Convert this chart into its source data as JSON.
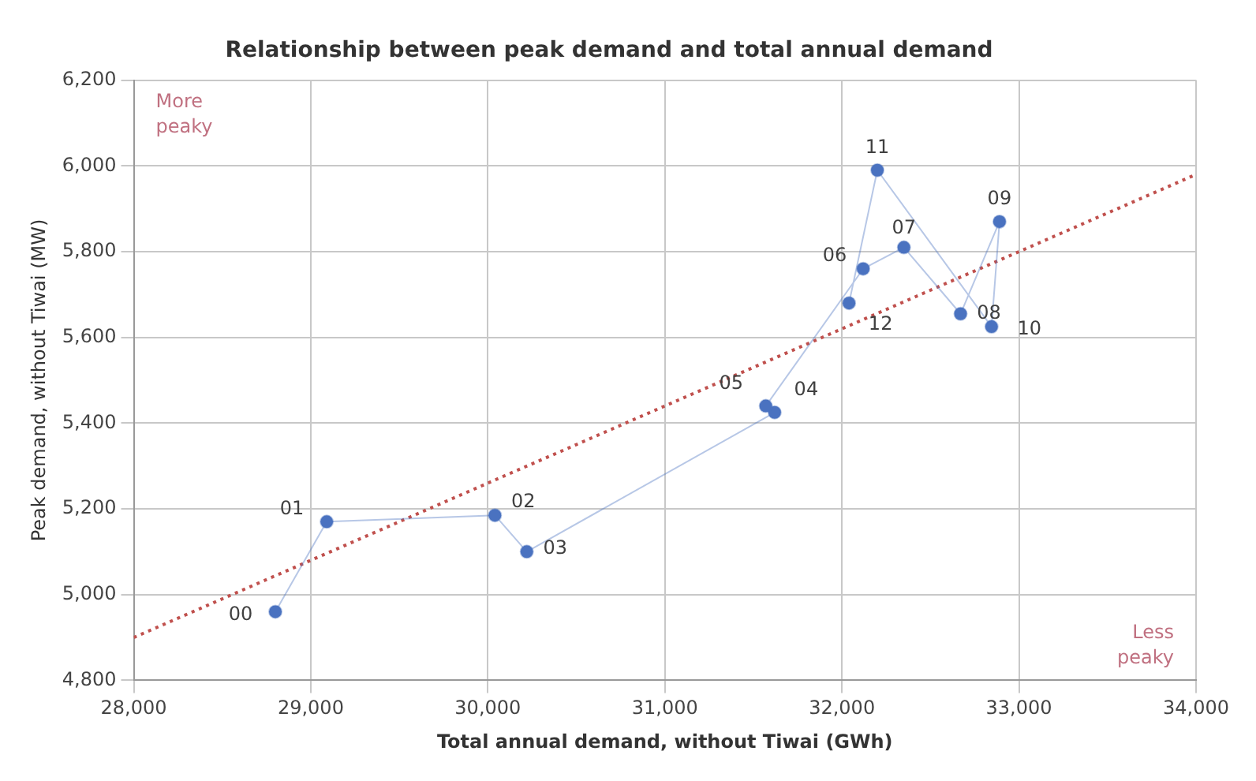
{
  "chart_data": {
    "type": "line",
    "title": "Relationship between peak demand and total annual demand",
    "xlabel": "Total annual demand, without Tiwai (GWh)",
    "ylabel": "Peak demand, without Tiwai (MW)",
    "xlim": [
      28000,
      34000
    ],
    "xticks": [
      {
        "value": 28000,
        "label": "28,000"
      },
      {
        "value": 29000,
        "label": "29,000"
      },
      {
        "value": 30000,
        "label": "30,000"
      },
      {
        "value": 31000,
        "label": "31,000"
      },
      {
        "value": 32000,
        "label": "32,000"
      },
      {
        "value": 33000,
        "label": "33,000"
      },
      {
        "value": 34000,
        "label": "34,000"
      }
    ],
    "ylim": [
      4800,
      6200
    ],
    "yticks": [
      {
        "value": 4800,
        "label": "4,800"
      },
      {
        "value": 5000,
        "label": "5,000"
      },
      {
        "value": 5200,
        "label": "5,200"
      },
      {
        "value": 5400,
        "label": "5,400"
      },
      {
        "value": 5600,
        "label": "5,600"
      },
      {
        "value": 5800,
        "label": "5,800"
      },
      {
        "value": 6000,
        "label": "6,000"
      },
      {
        "value": 6200,
        "label": "6,200"
      }
    ],
    "grid": true,
    "legend": false,
    "series": [
      {
        "marker": "circle",
        "color": "#4a72c0",
        "x": [
          28800,
          29090,
          30040,
          30220,
          31620,
          31570,
          32120,
          32350,
          32670,
          32890,
          32845,
          32200,
          32040
        ],
        "values": [
          4960,
          5170,
          5185,
          5100,
          5425,
          5440,
          5760,
          5810,
          5655,
          5870,
          5625,
          5990,
          5680
        ]
      },
      {
        "marker": "none",
        "line_style": "dotted",
        "color": "#c0504d",
        "x": [
          28000,
          34000
        ],
        "values": [
          4900,
          5980
        ]
      }
    ],
    "annotations": [
      {
        "text": "00",
        "x": 28800,
        "y": 4960
      },
      {
        "text": "01",
        "x": 29090,
        "y": 5170
      },
      {
        "text": "02",
        "x": 30040,
        "y": 5185
      },
      {
        "text": "03",
        "x": 30220,
        "y": 5100
      },
      {
        "text": "04",
        "x": 31620,
        "y": 5425
      },
      {
        "text": "05",
        "x": 31570,
        "y": 5440
      },
      {
        "text": "06",
        "x": 32120,
        "y": 5760
      },
      {
        "text": "07",
        "x": 32350,
        "y": 5810
      },
      {
        "text": "08",
        "x": 32670,
        "y": 5655
      },
      {
        "text": "09",
        "x": 32890,
        "y": 5870
      },
      {
        "text": "10",
        "x": 32845,
        "y": 5625
      },
      {
        "text": "11",
        "x": 32200,
        "y": 5990
      },
      {
        "text": "12",
        "x": 32040,
        "y": 5680
      },
      "More peaky",
      "Less peaky"
    ]
  }
}
